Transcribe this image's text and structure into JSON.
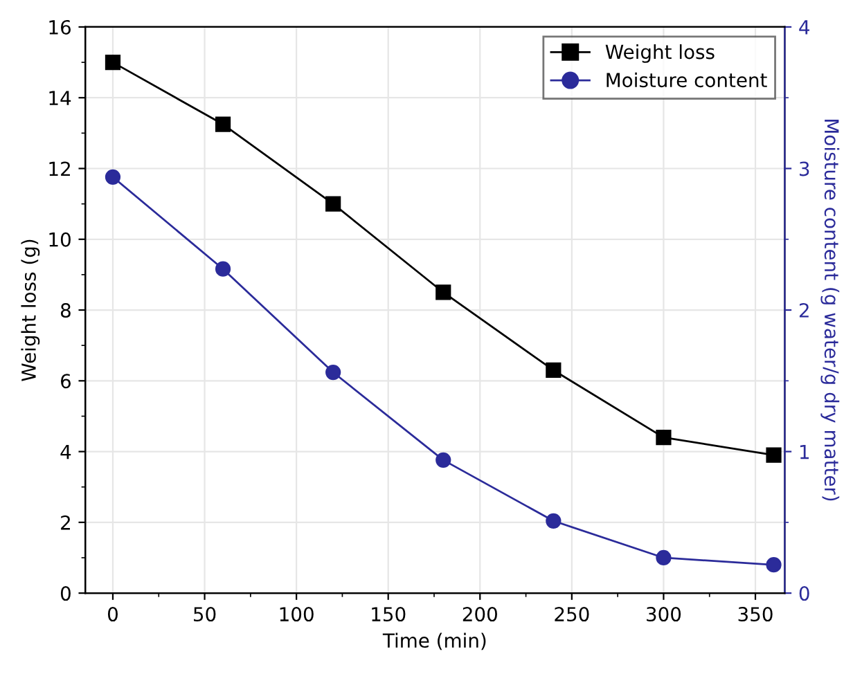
{
  "chart_data": {
    "type": "line",
    "xlabel": "Time (min)",
    "ylabel": "Weight loss (g)",
    "y2label": "Moisture content (g water/g dry matter)",
    "x": [
      0,
      60,
      120,
      180,
      240,
      300,
      360
    ],
    "series": [
      {
        "name": "Weight loss",
        "color": "#000000",
        "marker": "square",
        "values": [
          15,
          13.25,
          11,
          8.5,
          6.3,
          4.4,
          3.9
        ]
      },
      {
        "name": "Moisture content",
        "color": "#2b2b9a",
        "marker": "circle",
        "axis": "y2",
        "values": [
          2.94,
          2.29,
          1.56,
          0.94,
          0.51,
          0.25,
          0.2
        ]
      }
    ],
    "xlim": [
      -15,
      366
    ],
    "xticks": [
      0,
      50,
      100,
      150,
      200,
      250,
      300,
      350
    ],
    "ylim": [
      0,
      16
    ],
    "yticks": [
      0,
      2,
      4,
      6,
      8,
      10,
      12,
      14,
      16
    ],
    "y2lim": [
      0,
      4
    ],
    "y2ticks": [
      0,
      1,
      2,
      3,
      4
    ],
    "grid": true,
    "legend": "top right",
    "line_style": "solid"
  }
}
